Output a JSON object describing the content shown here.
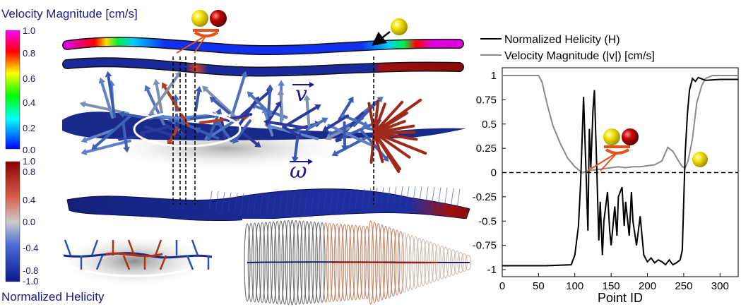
{
  "colorbar_velocity": {
    "title": "Velocity Magnitude [cm/s]",
    "ticks": [
      "1.0",
      "0.8",
      "0.6",
      "0.4",
      "0.2",
      "0.0"
    ]
  },
  "colorbar_helicity": {
    "title": "Normalized Helicity",
    "ticks": [
      "1.0",
      "0.8",
      "0.4",
      "0.0",
      "-0.4",
      "-0.8",
      "-1.0"
    ]
  },
  "symbols": {
    "velocity": "v",
    "vorticity": "ω"
  },
  "colors": {
    "helicity_line": "#000000",
    "velocity_line": "#8a8a8a",
    "ball_yellow": "#f2e000",
    "ball_red": "#c00000",
    "linker": "#e8501a",
    "tube_blue": "#1f2f9c",
    "arrow_red": "#b02020"
  },
  "chart_data": {
    "type": "line",
    "xlabel": "Point ID",
    "ylabel": "",
    "xlim": [
      0,
      325
    ],
    "ylim": [
      -1.05,
      1.05
    ],
    "x_ticks": [
      "0",
      "50",
      "100",
      "150",
      "200",
      "250",
      "300"
    ],
    "y_ticks": [
      "1",
      "0.75",
      "0.5",
      "0.25",
      "0",
      "-0.25",
      "-0.5",
      "-0.75",
      "-1"
    ],
    "reference_line": {
      "y": 0,
      "style": "dashed"
    },
    "legend_position": "top",
    "series": [
      {
        "name": "Normalized Helicity (H)",
        "x": [
          0,
          60,
          95,
          100,
          105,
          108,
          112,
          115,
          118,
          120,
          122,
          125,
          127,
          130,
          133,
          135,
          138,
          140,
          145,
          148,
          150,
          155,
          158,
          160,
          165,
          168,
          170,
          175,
          178,
          180,
          185,
          190,
          195,
          200,
          205,
          210,
          215,
          220,
          225,
          230,
          235,
          240,
          245,
          248,
          250,
          252,
          255,
          258,
          262,
          266,
          270,
          280,
          300,
          325
        ],
        "values": [
          -0.96,
          -0.96,
          -0.95,
          -0.85,
          -0.55,
          -0.1,
          0.78,
          0.1,
          -0.6,
          0.45,
          0.05,
          0.65,
          0.85,
          0.1,
          -0.7,
          -0.3,
          -0.85,
          -0.5,
          -0.2,
          -0.6,
          -0.75,
          -0.35,
          -0.65,
          -0.25,
          -0.15,
          -0.55,
          -0.3,
          -0.65,
          -0.2,
          -0.5,
          -0.75,
          -0.45,
          -0.85,
          -0.92,
          -0.88,
          -0.93,
          -0.9,
          -0.92,
          -0.95,
          -0.9,
          -0.95,
          -0.93,
          -0.9,
          -0.8,
          -0.3,
          0.2,
          0.6,
          0.85,
          0.97,
          0.94,
          0.98,
          0.95,
          0.96,
          0.96
        ]
      },
      {
        "name": "Velocity Magnitude (|v|) [cm/s]",
        "x": [
          0,
          50,
          55,
          62,
          70,
          80,
          90,
          100,
          110,
          115,
          120,
          130,
          140,
          150,
          160,
          170,
          180,
          190,
          200,
          210,
          220,
          228,
          235,
          242,
          248,
          252,
          256,
          262,
          268,
          275,
          280,
          290,
          300,
          325
        ],
        "values": [
          1.0,
          1.0,
          0.93,
          0.7,
          0.48,
          0.3,
          0.15,
          0.06,
          0.0,
          0.01,
          0.02,
          0.03,
          0.04,
          0.05,
          0.06,
          0.05,
          0.06,
          0.06,
          0.07,
          0.08,
          0.12,
          0.26,
          0.22,
          0.13,
          0.06,
          0.05,
          0.12,
          0.35,
          0.72,
          0.9,
          0.97,
          1.0,
          1.0,
          1.0
        ]
      }
    ]
  }
}
